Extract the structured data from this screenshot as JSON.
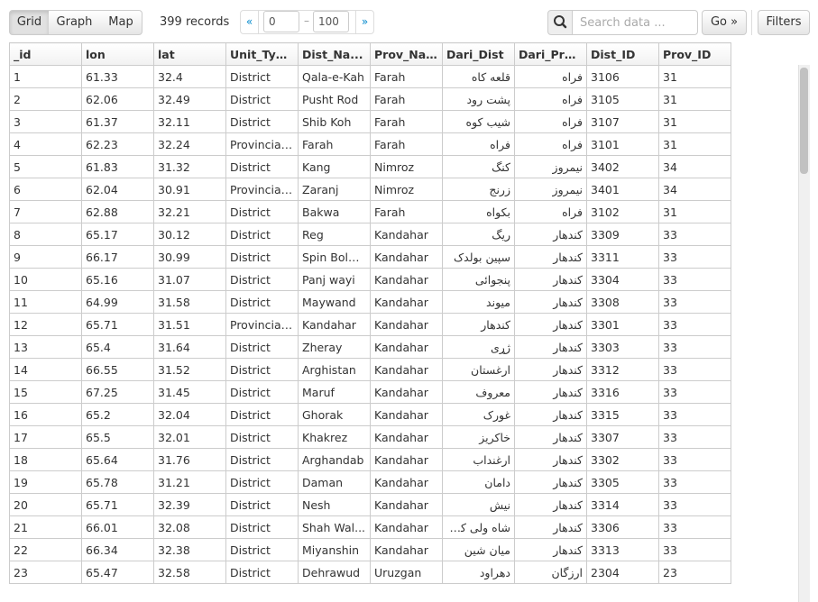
{
  "toolbar": {
    "grid_label": "Grid",
    "graph_label": "Graph",
    "map_label": "Map",
    "records_text": "399 records",
    "pager_prev": "«",
    "pager_next": "»",
    "pager_from": "0",
    "pager_to": "100",
    "pager_sep": "–",
    "search_placeholder": "Search data ...",
    "go_label": "Go »",
    "filters_label": "Filters"
  },
  "grid": {
    "columns": [
      "_id",
      "lon",
      "lat",
      "Unit_Typ...",
      "Dist_Na...",
      "Prov_Na...",
      "Dari_Dist",
      "Dari_Pro...",
      "Dist_ID",
      "Prov_ID"
    ],
    "rows": [
      [
        "1",
        "61.33",
        "32.4",
        "District",
        "Qala-e-Kah",
        "Farah",
        "قلعه کاه",
        "فراه",
        "3106",
        "31"
      ],
      [
        "2",
        "62.06",
        "32.49",
        "District",
        "Pusht Rod",
        "Farah",
        "پشت رود",
        "فراه",
        "3105",
        "31"
      ],
      [
        "3",
        "61.37",
        "32.11",
        "District",
        "Shib Koh",
        "Farah",
        "شیب کوه",
        "فراه",
        "3107",
        "31"
      ],
      [
        "4",
        "62.23",
        "32.24",
        "Provincial...",
        "Farah",
        "Farah",
        "فراه",
        "فراه",
        "3101",
        "31"
      ],
      [
        "5",
        "61.83",
        "31.32",
        "District",
        "Kang",
        "Nimroz",
        "کنگ",
        "نیمروز",
        "3402",
        "34"
      ],
      [
        "6",
        "62.04",
        "30.91",
        "Provincial...",
        "Zaranj",
        "Nimroz",
        "زرنج",
        "نیمروز",
        "3401",
        "34"
      ],
      [
        "7",
        "62.88",
        "32.21",
        "District",
        "Bakwa",
        "Farah",
        "بکواه",
        "فراه",
        "3102",
        "31"
      ],
      [
        "8",
        "65.17",
        "30.12",
        "District",
        "Reg",
        "Kandahar",
        "ریگ",
        "کندهار",
        "3309",
        "33"
      ],
      [
        "9",
        "66.17",
        "30.99",
        "District",
        "Spin Boldak",
        "Kandahar",
        "سپین بولدک",
        "کندهار",
        "3311",
        "33"
      ],
      [
        "10",
        "65.16",
        "31.07",
        "District",
        "Panj wayi",
        "Kandahar",
        "پنجوائی",
        "کندهار",
        "3304",
        "33"
      ],
      [
        "11",
        "64.99",
        "31.58",
        "District",
        "Maywand",
        "Kandahar",
        "میوند",
        "کندهار",
        "3308",
        "33"
      ],
      [
        "12",
        "65.71",
        "31.51",
        "Provincial...",
        "Kandahar",
        "Kandahar",
        "کندهار",
        "کندهار",
        "3301",
        "33"
      ],
      [
        "13",
        "65.4",
        "31.64",
        "District",
        "Zheray",
        "Kandahar",
        "ژړی",
        "کندهار",
        "3303",
        "33"
      ],
      [
        "14",
        "66.55",
        "31.52",
        "District",
        "Arghistan",
        "Kandahar",
        "ارغستان",
        "کندهار",
        "3312",
        "33"
      ],
      [
        "15",
        "67.25",
        "31.45",
        "District",
        "Maruf",
        "Kandahar",
        "معروف",
        "کندهار",
        "3316",
        "33"
      ],
      [
        "16",
        "65.2",
        "32.04",
        "District",
        "Ghorak",
        "Kandahar",
        "غورک",
        "کندهار",
        "3315",
        "33"
      ],
      [
        "17",
        "65.5",
        "32.01",
        "District",
        "Khakrez",
        "Kandahar",
        "خاکریز",
        "کندهار",
        "3307",
        "33"
      ],
      [
        "18",
        "65.64",
        "31.76",
        "District",
        "Arghandab",
        "Kandahar",
        "ارغنداب",
        "کندهار",
        "3302",
        "33"
      ],
      [
        "19",
        "65.78",
        "31.21",
        "District",
        "Daman",
        "Kandahar",
        "دامان",
        "کندهار",
        "3305",
        "33"
      ],
      [
        "20",
        "65.71",
        "32.39",
        "District",
        "Nesh",
        "Kandahar",
        "نیش",
        "کندهار",
        "3314",
        "33"
      ],
      [
        "21",
        "66.01",
        "32.08",
        "District",
        "Shah Wal...",
        "Kandahar",
        "شاه ولی کوت",
        "کندهار",
        "3306",
        "33"
      ],
      [
        "22",
        "66.34",
        "32.38",
        "District",
        "Miyanshin",
        "Kandahar",
        "میان شین",
        "کندهار",
        "3313",
        "33"
      ],
      [
        "23",
        "65.47",
        "32.58",
        "District",
        "Dehrawud",
        "Uruzgan",
        "دهراود",
        "ارزگان",
        "2304",
        "23"
      ]
    ]
  }
}
